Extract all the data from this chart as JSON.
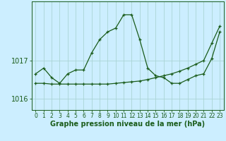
{
  "xlabel": "Graphe pression niveau de la mer (hPa)",
  "background_color": "#cceeff",
  "grid_color": "#aad4d4",
  "line_color": "#1a5c1a",
  "x_hours": [
    0,
    1,
    2,
    3,
    4,
    5,
    6,
    7,
    8,
    9,
    10,
    11,
    12,
    13,
    14,
    15,
    16,
    17,
    18,
    19,
    20,
    21,
    22,
    23
  ],
  "pressure_main": [
    1016.65,
    1016.8,
    1016.55,
    1016.4,
    1016.65,
    1016.75,
    1016.75,
    1017.2,
    1017.55,
    1017.75,
    1017.85,
    1018.2,
    1018.2,
    1017.55,
    1016.8,
    1016.6,
    1016.55,
    1016.4,
    1016.4,
    1016.5,
    1016.6,
    1016.65,
    1017.05,
    1017.75
  ],
  "pressure_trend": [
    1016.4,
    1016.4,
    1016.38,
    1016.38,
    1016.38,
    1016.38,
    1016.38,
    1016.38,
    1016.38,
    1016.38,
    1016.4,
    1016.42,
    1016.44,
    1016.46,
    1016.5,
    1016.55,
    1016.6,
    1016.65,
    1016.72,
    1016.8,
    1016.9,
    1017.0,
    1017.45,
    1017.9
  ],
  "ylim_min": 1015.7,
  "ylim_max": 1018.55,
  "yticks": [
    1016.0,
    1017.0
  ],
  "ytick_labels": [
    "1016",
    "1017"
  ],
  "xticks": [
    0,
    1,
    2,
    3,
    4,
    5,
    6,
    7,
    8,
    9,
    10,
    11,
    12,
    13,
    14,
    15,
    16,
    17,
    18,
    19,
    20,
    21,
    22,
    23
  ],
  "fontsize_xlabel": 7,
  "fontsize_yticks": 7,
  "fontsize_xticks": 5.5
}
